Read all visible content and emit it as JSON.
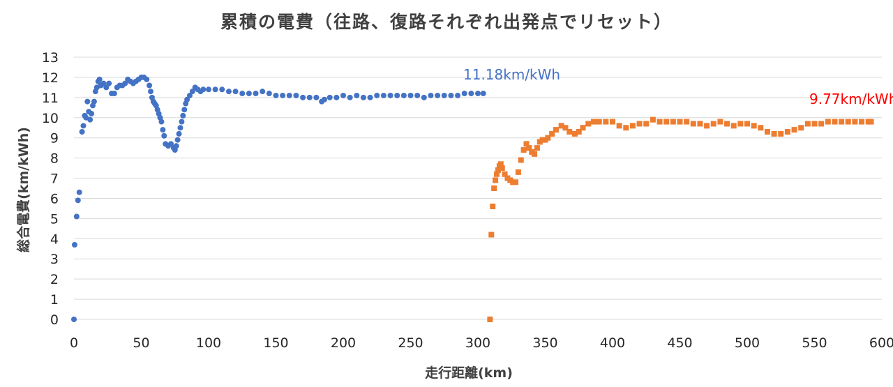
{
  "chart_data": {
    "type": "scatter",
    "title": "累積の電費（往路、復路それぞれ出発点でリセット）",
    "xlabel": "走行距離(km)",
    "ylabel": "総合電費(km/kWh)",
    "xlim": [
      0,
      600
    ],
    "ylim": [
      0,
      13
    ],
    "x_ticks": [
      "0",
      "50",
      "100",
      "150",
      "200",
      "250",
      "300",
      "350",
      "400",
      "450",
      "500",
      "550",
      "600"
    ],
    "y_ticks": [
      "0",
      "1",
      "2",
      "3",
      "4",
      "5",
      "6",
      "7",
      "8",
      "9",
      "10",
      "11",
      "12",
      "13"
    ],
    "grid": true,
    "legend": "none",
    "series": [
      {
        "color": "#4472c4",
        "marker": "circle",
        "points": [
          [
            0,
            0
          ],
          [
            0.5,
            3.7
          ],
          [
            2,
            5.1
          ],
          [
            3,
            5.9
          ],
          [
            4,
            6.3
          ],
          [
            6,
            9.3
          ],
          [
            7,
            9.6
          ],
          [
            8,
            10.1
          ],
          [
            9,
            10.0
          ],
          [
            10,
            10.8
          ],
          [
            11,
            10.3
          ],
          [
            12,
            9.9
          ],
          [
            13,
            10.2
          ],
          [
            14,
            10.6
          ],
          [
            15,
            10.8
          ],
          [
            16,
            11.3
          ],
          [
            17,
            11.5
          ],
          [
            18,
            11.8
          ],
          [
            19,
            11.9
          ],
          [
            20,
            11.6
          ],
          [
            22,
            11.7
          ],
          [
            24,
            11.5
          ],
          [
            26,
            11.7
          ],
          [
            28,
            11.2
          ],
          [
            30,
            11.2
          ],
          [
            32,
            11.5
          ],
          [
            34,
            11.6
          ],
          [
            36,
            11.6
          ],
          [
            38,
            11.7
          ],
          [
            40,
            11.9
          ],
          [
            42,
            11.8
          ],
          [
            44,
            11.7
          ],
          [
            46,
            11.8
          ],
          [
            48,
            11.9
          ],
          [
            50,
            12.0
          ],
          [
            52,
            12.0
          ],
          [
            54,
            11.9
          ],
          [
            56,
            11.6
          ],
          [
            57,
            11.3
          ],
          [
            58,
            11.0
          ],
          [
            59,
            10.8
          ],
          [
            60,
            10.7
          ],
          [
            61,
            10.6
          ],
          [
            62,
            10.4
          ],
          [
            63,
            10.2
          ],
          [
            64,
            10.0
          ],
          [
            65,
            9.8
          ],
          [
            66,
            9.4
          ],
          [
            67,
            9.1
          ],
          [
            68,
            8.7
          ],
          [
            70,
            8.6
          ],
          [
            72,
            8.7
          ],
          [
            74,
            8.5
          ],
          [
            75,
            8.4
          ],
          [
            76,
            8.6
          ],
          [
            77,
            8.9
          ],
          [
            78,
            9.2
          ],
          [
            79,
            9.5
          ],
          [
            80,
            9.8
          ],
          [
            81,
            10.1
          ],
          [
            82,
            10.4
          ],
          [
            83,
            10.7
          ],
          [
            84,
            10.9
          ],
          [
            86,
            11.1
          ],
          [
            88,
            11.3
          ],
          [
            90,
            11.5
          ],
          [
            92,
            11.4
          ],
          [
            94,
            11.3
          ],
          [
            96,
            11.4
          ],
          [
            100,
            11.4
          ],
          [
            105,
            11.4
          ],
          [
            110,
            11.4
          ],
          [
            115,
            11.3
          ],
          [
            120,
            11.3
          ],
          [
            125,
            11.2
          ],
          [
            130,
            11.2
          ],
          [
            135,
            11.2
          ],
          [
            140,
            11.3
          ],
          [
            145,
            11.2
          ],
          [
            150,
            11.1
          ],
          [
            155,
            11.1
          ],
          [
            160,
            11.1
          ],
          [
            165,
            11.1
          ],
          [
            170,
            11.0
          ],
          [
            175,
            11.0
          ],
          [
            180,
            11.0
          ],
          [
            184,
            10.8
          ],
          [
            186,
            10.9
          ],
          [
            190,
            11.0
          ],
          [
            195,
            11.0
          ],
          [
            200,
            11.1
          ],
          [
            205,
            11.0
          ],
          [
            210,
            11.1
          ],
          [
            215,
            11.0
          ],
          [
            220,
            11.0
          ],
          [
            225,
            11.1
          ],
          [
            230,
            11.1
          ],
          [
            235,
            11.1
          ],
          [
            240,
            11.1
          ],
          [
            245,
            11.1
          ],
          [
            250,
            11.1
          ],
          [
            255,
            11.1
          ],
          [
            260,
            11.0
          ],
          [
            265,
            11.1
          ],
          [
            270,
            11.1
          ],
          [
            275,
            11.1
          ],
          [
            280,
            11.1
          ],
          [
            285,
            11.1
          ],
          [
            290,
            11.2
          ],
          [
            295,
            11.2
          ],
          [
            300,
            11.2
          ],
          [
            304,
            11.2
          ]
        ]
      },
      {
        "color": "#ed7d31",
        "marker": "square",
        "points": [
          [
            309,
            0
          ],
          [
            310,
            4.2
          ],
          [
            311,
            5.6
          ],
          [
            312,
            6.5
          ],
          [
            313,
            6.9
          ],
          [
            314,
            7.2
          ],
          [
            315,
            7.4
          ],
          [
            316,
            7.6
          ],
          [
            317,
            7.7
          ],
          [
            318,
            7.5
          ],
          [
            320,
            7.2
          ],
          [
            322,
            7.0
          ],
          [
            324,
            6.9
          ],
          [
            326,
            6.8
          ],
          [
            328,
            6.8
          ],
          [
            330,
            7.3
          ],
          [
            332,
            7.9
          ],
          [
            334,
            8.4
          ],
          [
            336,
            8.7
          ],
          [
            338,
            8.5
          ],
          [
            340,
            8.3
          ],
          [
            342,
            8.2
          ],
          [
            344,
            8.5
          ],
          [
            346,
            8.8
          ],
          [
            348,
            8.9
          ],
          [
            350,
            8.9
          ],
          [
            352,
            9.0
          ],
          [
            355,
            9.2
          ],
          [
            358,
            9.4
          ],
          [
            362,
            9.6
          ],
          [
            365,
            9.5
          ],
          [
            368,
            9.3
          ],
          [
            372,
            9.2
          ],
          [
            375,
            9.3
          ],
          [
            378,
            9.5
          ],
          [
            382,
            9.7
          ],
          [
            386,
            9.8
          ],
          [
            390,
            9.8
          ],
          [
            395,
            9.8
          ],
          [
            400,
            9.8
          ],
          [
            405,
            9.6
          ],
          [
            410,
            9.5
          ],
          [
            415,
            9.6
          ],
          [
            420,
            9.7
          ],
          [
            425,
            9.7
          ],
          [
            430,
            9.9
          ],
          [
            435,
            9.8
          ],
          [
            440,
            9.8
          ],
          [
            445,
            9.8
          ],
          [
            450,
            9.8
          ],
          [
            455,
            9.8
          ],
          [
            460,
            9.7
          ],
          [
            465,
            9.7
          ],
          [
            470,
            9.6
          ],
          [
            475,
            9.7
          ],
          [
            480,
            9.8
          ],
          [
            485,
            9.7
          ],
          [
            490,
            9.6
          ],
          [
            495,
            9.7
          ],
          [
            500,
            9.7
          ],
          [
            505,
            9.6
          ],
          [
            510,
            9.5
          ],
          [
            515,
            9.3
          ],
          [
            520,
            9.2
          ],
          [
            525,
            9.2
          ],
          [
            530,
            9.3
          ],
          [
            535,
            9.4
          ],
          [
            540,
            9.5
          ],
          [
            545,
            9.7
          ],
          [
            550,
            9.7
          ],
          [
            555,
            9.7
          ],
          [
            560,
            9.8
          ],
          [
            565,
            9.8
          ],
          [
            570,
            9.8
          ],
          [
            575,
            9.8
          ],
          [
            580,
            9.8
          ],
          [
            585,
            9.8
          ],
          [
            590,
            9.8
          ],
          [
            592,
            9.8
          ]
        ]
      }
    ],
    "annotations": [
      {
        "text": "11.18km/kWh",
        "color": "#4472c4"
      },
      {
        "text": "9.77km/kWh",
        "color": "#ff0000"
      }
    ]
  }
}
